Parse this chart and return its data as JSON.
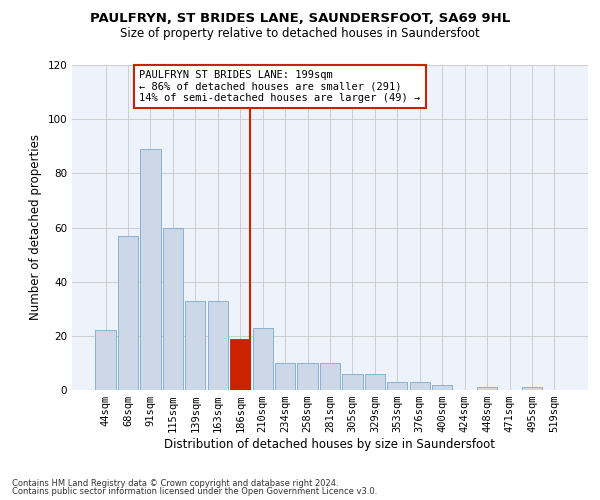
{
  "title": "PAULFRYN, ST BRIDES LANE, SAUNDERSFOOT, SA69 9HL",
  "subtitle": "Size of property relative to detached houses in Saundersfoot",
  "xlabel": "Distribution of detached houses by size in Saundersfoot",
  "ylabel": "Number of detached properties",
  "footnote1": "Contains HM Land Registry data © Crown copyright and database right 2024.",
  "footnote2": "Contains public sector information licensed under the Open Government Licence v3.0.",
  "annotation_line1": "PAULFRYN ST BRIDES LANE: 199sqm",
  "annotation_line2": "← 86% of detached houses are smaller (291)",
  "annotation_line3": "14% of semi-detached houses are larger (49) →",
  "bar_color": "#ccd8e8",
  "bar_edge_color": "#7aaad0",
  "highlight_color": "#cc2200",
  "grid_color": "#c8c8c8",
  "background_color": "#eef2fa",
  "categories": [
    "44sqm",
    "68sqm",
    "91sqm",
    "115sqm",
    "139sqm",
    "163sqm",
    "186sqm",
    "210sqm",
    "234sqm",
    "258sqm",
    "281sqm",
    "305sqm",
    "329sqm",
    "353sqm",
    "376sqm",
    "400sqm",
    "424sqm",
    "448sqm",
    "471sqm",
    "495sqm",
    "519sqm"
  ],
  "values": [
    22,
    57,
    89,
    60,
    33,
    33,
    19,
    23,
    10,
    10,
    10,
    6,
    6,
    3,
    3,
    2,
    0,
    1,
    0,
    1,
    0
  ],
  "highlight_bin": 6,
  "line_bin": 6,
  "ylim": [
    0,
    120
  ],
  "yticks": [
    0,
    20,
    40,
    60,
    80,
    100,
    120
  ],
  "title_fontsize": 9.5,
  "subtitle_fontsize": 8.5,
  "ylabel_fontsize": 8.5,
  "xlabel_fontsize": 8.5,
  "tick_fontsize": 7.5,
  "annot_fontsize": 7.5,
  "footnote_fontsize": 6.0
}
